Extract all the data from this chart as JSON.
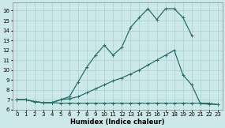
{
  "xlabel": "Humidex (Indice chaleur)",
  "bg_color": "#cde8e8",
  "grid_color": "#a8d0d0",
  "line_color": "#2a6e68",
  "xlim": [
    -0.5,
    23.5
  ],
  "ylim": [
    6,
    16.8
  ],
  "yticks": [
    6,
    7,
    8,
    9,
    10,
    11,
    12,
    13,
    14,
    15,
    16
  ],
  "xticks": [
    0,
    1,
    2,
    3,
    4,
    5,
    6,
    7,
    8,
    9,
    10,
    11,
    12,
    13,
    14,
    15,
    16,
    17,
    18,
    19,
    20,
    21,
    22,
    23
  ],
  "line1_x": [
    0,
    1,
    2,
    3,
    4,
    5,
    6,
    7,
    8,
    9,
    10,
    11,
    12,
    13,
    14,
    15,
    16,
    17,
    18,
    19,
    20,
    21,
    22,
    23
  ],
  "line1_y": [
    7.0,
    7.0,
    6.8,
    6.7,
    6.7,
    6.65,
    6.65,
    6.65,
    6.65,
    6.65,
    6.65,
    6.65,
    6.65,
    6.65,
    6.65,
    6.65,
    6.65,
    6.65,
    6.65,
    6.65,
    6.65,
    6.65,
    6.65,
    6.5
  ],
  "line2_x": [
    0,
    1,
    2,
    3,
    4,
    5,
    6,
    7,
    8,
    9,
    10,
    11,
    12,
    13,
    14,
    15,
    16,
    17,
    18,
    19,
    20,
    21,
    22,
    23
  ],
  "line2_y": [
    7.0,
    7.0,
    6.8,
    6.7,
    6.7,
    7.0,
    7.1,
    7.3,
    7.7,
    8.1,
    8.5,
    8.9,
    9.2,
    9.6,
    10.0,
    10.5,
    11.0,
    11.5,
    12.0,
    9.5,
    8.5,
    6.6,
    6.55,
    6.5
  ],
  "line3_x": [
    0,
    1,
    2,
    3,
    4,
    5,
    6,
    7,
    8,
    9,
    10,
    11,
    12,
    13,
    14,
    15,
    16,
    17,
    18,
    19,
    20
  ],
  "line3_y": [
    7.0,
    7.0,
    6.8,
    6.7,
    6.7,
    7.0,
    7.3,
    8.8,
    10.3,
    11.5,
    12.5,
    11.5,
    12.3,
    14.3,
    15.3,
    16.2,
    15.1,
    16.2,
    16.2,
    15.3,
    13.5
  ],
  "marker_size": 2.5,
  "line_width": 0.9,
  "tick_fontsize": 5.0,
  "xlabel_fontsize": 6.0
}
